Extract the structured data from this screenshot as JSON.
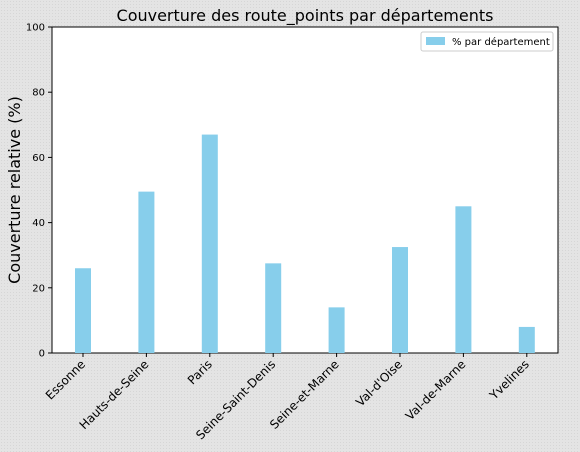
{
  "chart_data": {
    "type": "bar",
    "title": "Couverture des route_points par départements",
    "xlabel": "",
    "ylabel": "Couverture relative (%)",
    "ylim": [
      0,
      100
    ],
    "yticks": [
      0,
      20,
      40,
      60,
      80,
      100
    ],
    "categories": [
      "Essonne",
      "Hauts-de-Seine",
      "Paris",
      "Seine-Saint-Denis",
      "Seine-et-Marne",
      "Val-d'Oise",
      "Val-de-Marne",
      "Yvelines"
    ],
    "series": [
      {
        "name": "% par département",
        "color": "#87ceeb",
        "values": [
          26,
          49.5,
          67,
          27.5,
          14,
          32.5,
          45,
          8
        ]
      }
    ],
    "legend_position": "top-right",
    "grid": false
  }
}
